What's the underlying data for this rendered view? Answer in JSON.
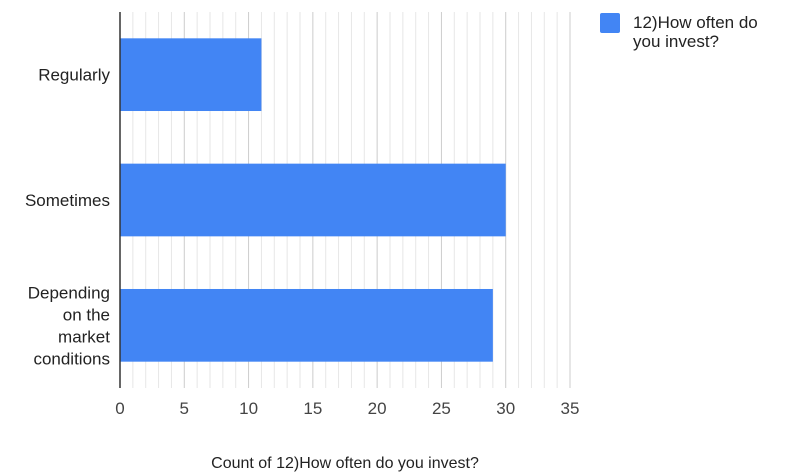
{
  "chart_data": {
    "type": "bar",
    "orientation": "horizontal",
    "categories": [
      "Regularly",
      "Sometimes",
      "Depending on the market conditions"
    ],
    "category_label_lines": [
      [
        "Regularly"
      ],
      [
        "Sometimes"
      ],
      [
        "Depending",
        "on the",
        "market",
        "conditions"
      ]
    ],
    "series": [
      {
        "name": "12)How often do you invest?",
        "values": [
          11,
          30,
          29
        ],
        "color": "#4285f4"
      }
    ],
    "xlabel": "Count of 12)How often do you invest?",
    "xlim": [
      0,
      35
    ],
    "xticks": [
      0,
      5,
      10,
      15,
      20,
      25,
      30,
      35
    ],
    "grid": true,
    "legend": {
      "position": "right",
      "label_lines": [
        "12)How often do",
        "you invest?"
      ]
    }
  }
}
